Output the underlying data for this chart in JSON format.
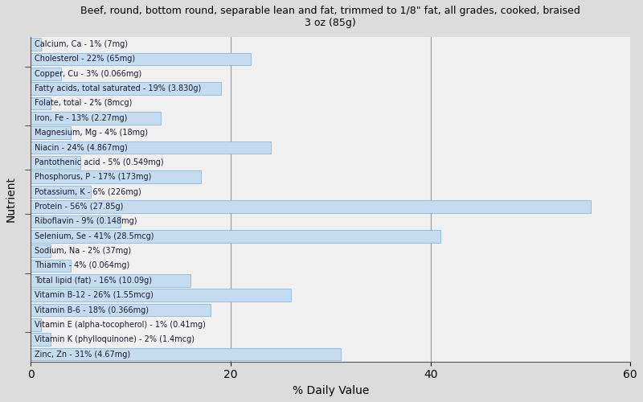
{
  "title": "Beef, round, bottom round, separable lean and fat, trimmed to 1/8\" fat, all grades, cooked, braised\n3 oz (85g)",
  "xlabel": "% Daily Value",
  "ylabel": "Nutrient",
  "fig_background_color": "#dcdcdc",
  "plot_background_color": "#f0f0f0",
  "bar_color": "#c5dcf0",
  "bar_edge_color": "#7aafd4",
  "text_color": "#1a1a2e",
  "xlim": [
    0,
    60
  ],
  "xticks": [
    0,
    20,
    40,
    60
  ],
  "vline_color": "#999999",
  "vline_x": 20,
  "nutrients": [
    {
      "label": "Calcium, Ca - 1% (7mg)",
      "value": 1
    },
    {
      "label": "Cholesterol - 22% (65mg)",
      "value": 22
    },
    {
      "label": "Copper, Cu - 3% (0.066mg)",
      "value": 3
    },
    {
      "label": "Fatty acids, total saturated - 19% (3.830g)",
      "value": 19
    },
    {
      "label": "Folate, total - 2% (8mcg)",
      "value": 2
    },
    {
      "label": "Iron, Fe - 13% (2.27mg)",
      "value": 13
    },
    {
      "label": "Magnesium, Mg - 4% (18mg)",
      "value": 4
    },
    {
      "label": "Niacin - 24% (4.867mg)",
      "value": 24
    },
    {
      "label": "Pantothenic acid - 5% (0.549mg)",
      "value": 5
    },
    {
      "label": "Phosphorus, P - 17% (173mg)",
      "value": 17
    },
    {
      "label": "Potassium, K - 6% (226mg)",
      "value": 6
    },
    {
      "label": "Protein - 56% (27.85g)",
      "value": 56
    },
    {
      "label": "Riboflavin - 9% (0.148mg)",
      "value": 9
    },
    {
      "label": "Selenium, Se - 41% (28.5mcg)",
      "value": 41
    },
    {
      "label": "Sodium, Na - 2% (37mg)",
      "value": 2
    },
    {
      "label": "Thiamin - 4% (0.064mg)",
      "value": 4
    },
    {
      "label": "Total lipid (fat) - 16% (10.09g)",
      "value": 16
    },
    {
      "label": "Vitamin B-12 - 26% (1.55mcg)",
      "value": 26
    },
    {
      "label": "Vitamin B-6 - 18% (0.366mg)",
      "value": 18
    },
    {
      "label": "Vitamin E (alpha-tocopherol) - 1% (0.41mg)",
      "value": 1
    },
    {
      "label": "Vitamin K (phylloquinone) - 2% (1.4mcg)",
      "value": 2
    },
    {
      "label": "Zinc, Zn - 31% (4.67mg)",
      "value": 31
    }
  ]
}
